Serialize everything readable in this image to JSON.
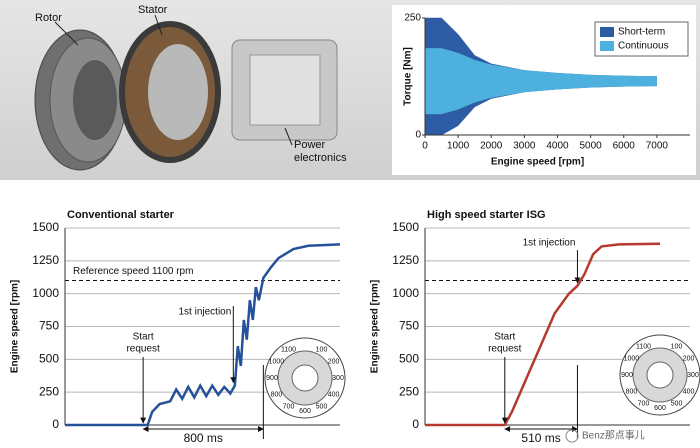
{
  "photo": {
    "rotor": "Rotor",
    "stator": "Stator",
    "power_electronics": [
      "Power",
      "electronics"
    ]
  },
  "chart_data": [
    {
      "type": "area-range",
      "x": [
        0,
        500,
        1000,
        1500,
        2000,
        3000,
        4000,
        5000,
        6000,
        7000
      ],
      "xlim": [
        0,
        8000
      ],
      "xticks": [
        0,
        1000,
        2000,
        3000,
        4000,
        5000,
        6000,
        7000
      ],
      "ylim": [
        0,
        250
      ],
      "yticks": [
        0,
        250
      ],
      "x_label": "Engine speed [rpm]",
      "y_label": "Torque [Nm]",
      "legend": "top-right",
      "series": [
        {
          "name": "Short-term",
          "color": "#2d5ca5",
          "high": [
            250,
            250,
            215,
            170,
            152,
            138,
            132,
            128,
            126,
            125
          ],
          "low": [
            0,
            0,
            20,
            60,
            78,
            92,
            98,
            102,
            104,
            105
          ]
        },
        {
          "name": "Continuous",
          "color": "#4db0de",
          "high": [
            185,
            185,
            175,
            160,
            150,
            138,
            132,
            128,
            126,
            125
          ],
          "low": [
            45,
            45,
            55,
            70,
            80,
            92,
            98,
            102,
            104,
            105
          ]
        }
      ]
    },
    {
      "type": "line",
      "title": "Conventional starter",
      "x": [
        -520,
        30,
        60,
        110,
        180,
        220,
        260,
        300,
        340,
        380,
        420,
        460,
        500,
        540,
        580,
        610,
        630,
        650,
        670,
        690,
        710,
        730,
        750,
        770,
        800,
        850,
        900,
        1000,
        1100,
        1310
      ],
      "values": [
        0,
        0,
        100,
        160,
        180,
        270,
        200,
        290,
        210,
        300,
        220,
        300,
        230,
        290,
        240,
        300,
        600,
        450,
        800,
        650,
        950,
        800,
        1050,
        950,
        1120,
        1200,
        1270,
        1340,
        1365,
        1375
      ],
      "color": "#24519a",
      "xlim": [
        -520,
        1310
      ],
      "ylim": [
        0,
        1500
      ],
      "yticks": [
        0,
        250,
        500,
        750,
        1000,
        1250,
        1500
      ],
      "y_label": "Engine speed [rpm]",
      "grid": true,
      "reference": {
        "value": 1100,
        "label": "Reference speed 1100 rpm"
      },
      "injection": {
        "text": "1st injection",
        "x": 600
      },
      "start": {
        "text": [
          "Start",
          "request"
        ],
        "x": 0
      },
      "duration": {
        "text": "800 ms",
        "from": 0,
        "to": 800
      },
      "dial_labels": [
        "100",
        "200",
        "300",
        "400",
        "500",
        "600",
        "700",
        "800",
        "900",
        "1000",
        "1100"
      ]
    },
    {
      "type": "line",
      "title": "High speed starter ISG",
      "x": [
        -560,
        0,
        50,
        150,
        250,
        350,
        450,
        510,
        560,
        620,
        680,
        800,
        1090
      ],
      "values": [
        0,
        0,
        100,
        350,
        600,
        850,
        1000,
        1060,
        1150,
        1300,
        1360,
        1375,
        1380
      ],
      "color": "#b33a2c",
      "xlim": [
        -560,
        1300
      ],
      "ylim": [
        0,
        1500
      ],
      "yticks": [
        0,
        250,
        500,
        750,
        1000,
        1250,
        1500
      ],
      "y_label": "Engine speed [rpm]",
      "grid": true,
      "reference": {
        "value": 1100
      },
      "injection": {
        "text": "1st injection",
        "x": 510
      },
      "start": {
        "text": [
          "Start",
          "request"
        ],
        "x": 0
      },
      "duration": {
        "text": "510 ms",
        "from": 0,
        "to": 510
      },
      "dial_labels": [
        "100",
        "200",
        "300",
        "400",
        "500",
        "600",
        "700",
        "800",
        "900",
        "1000",
        "1100"
      ]
    }
  ],
  "watermark": "Benz那点事儿"
}
